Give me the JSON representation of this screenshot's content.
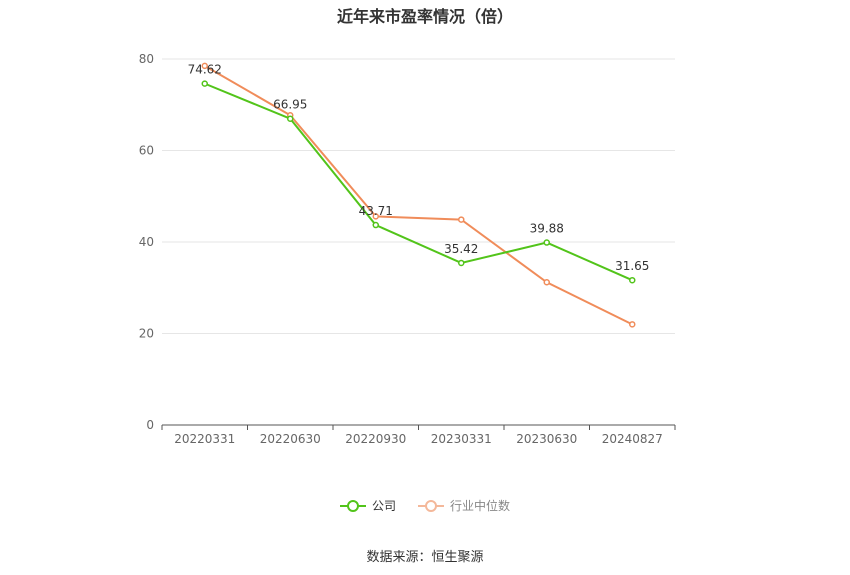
{
  "title": "近年来市盈率情况（倍）",
  "source": "数据来源：恒生聚源",
  "colors": {
    "company": "#52c41a",
    "industry": "#f08c5a",
    "grid": "#e6e6e6",
    "axis": "#555555",
    "tick": "#666666"
  },
  "chart_data": {
    "type": "line",
    "categories": [
      "20220331",
      "20220630",
      "20220930",
      "20230331",
      "20230630",
      "20240827"
    ],
    "ylim": [
      0,
      80
    ],
    "yticks": [
      0,
      20,
      40,
      60,
      80
    ],
    "grid": true,
    "legend_position": "bottom-center",
    "series": [
      {
        "name": "公司",
        "color": "#52c41a",
        "values": [
          74.62,
          66.95,
          43.71,
          35.42,
          39.88,
          31.65
        ],
        "labels": [
          "74.62",
          "66.95",
          "43.71",
          "35.42",
          "39.88",
          "31.65"
        ]
      },
      {
        "name": "行业中位数",
        "color": "#f08c5a",
        "values": [
          78.5,
          67.7,
          45.6,
          44.9,
          31.2,
          22.0
        ]
      }
    ]
  }
}
